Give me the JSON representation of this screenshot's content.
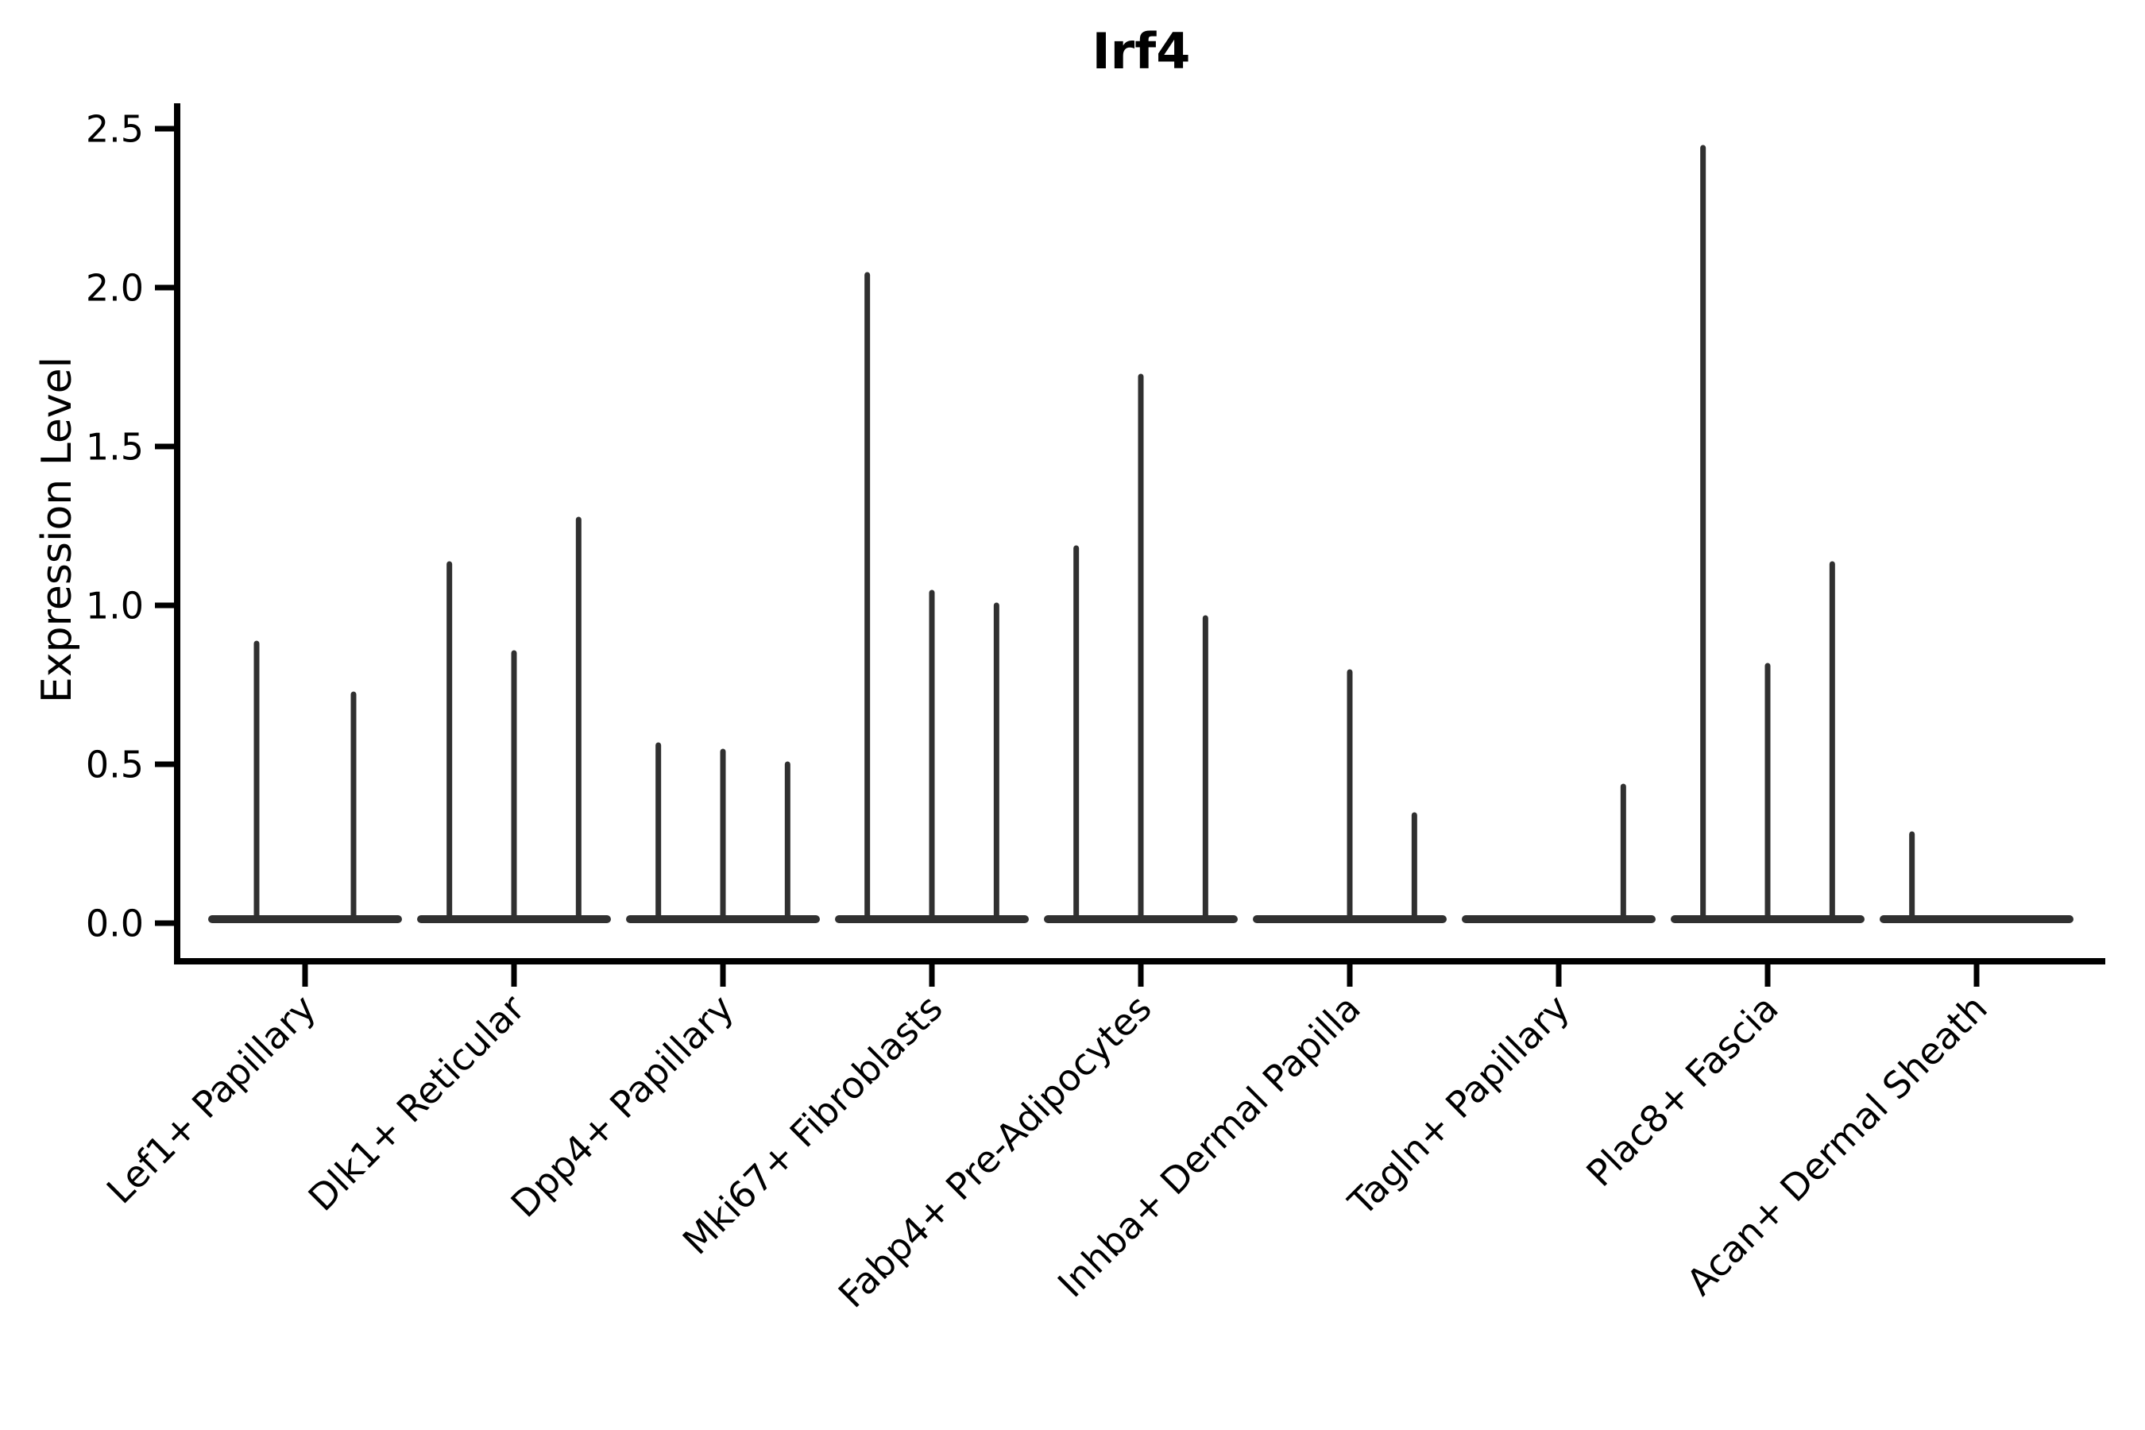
{
  "chart_data": {
    "type": "violin",
    "title": "Irf4",
    "xlabel": "",
    "ylabel": "Expression Level",
    "ylim": [
      0,
      2.5
    ],
    "yticks": [
      0.0,
      0.5,
      1.0,
      1.5,
      2.0,
      2.5
    ],
    "ytick_labels": [
      "0.0",
      "0.5",
      "1.0",
      "1.5",
      "2.0",
      "2.5"
    ],
    "grid": false,
    "legend_position": "none",
    "note": "Stacked-violin style expression plot; violins are collapsed to a baseline at 0 with a thin spike up to the maximum expression value. Each category contains 2-3 violins; value 0 means a flat violin with no spike.",
    "categories": [
      "Lef1+ Papillary",
      "Dlk1+ Reticular",
      "Dpp4+ Papillary",
      "Mki67+ Fibroblasts",
      "Fabp4+ Pre-Adipocytes",
      "Inhba+ Dermal Papilla",
      "Tagln+ Papillary",
      "Plac8+ Fascia",
      "Acan+ Dermal Sheath"
    ],
    "violins": [
      {
        "category": "Lef1+ Papillary",
        "max_values": [
          0.88,
          0.72
        ]
      },
      {
        "category": "Dlk1+ Reticular",
        "max_values": [
          1.13,
          0.85,
          1.27
        ]
      },
      {
        "category": "Dpp4+ Papillary",
        "max_values": [
          0.56,
          0.54,
          0.5
        ]
      },
      {
        "category": "Mki67+ Fibroblasts",
        "max_values": [
          2.04,
          1.04,
          1.0
        ]
      },
      {
        "category": "Fabp4+ Pre-Adipocytes",
        "max_values": [
          1.18,
          1.72,
          0.96
        ]
      },
      {
        "category": "Inhba+ Dermal Papilla",
        "max_values": [
          0.0,
          0.79,
          0.34
        ]
      },
      {
        "category": "Tagln+ Papillary",
        "max_values": [
          0.0,
          0.0,
          0.43
        ]
      },
      {
        "category": "Plac8+ Fascia",
        "max_values": [
          2.44,
          0.81,
          1.13
        ]
      },
      {
        "category": "Acan+ Dermal Sheath",
        "max_values": [
          0.28,
          0.0,
          0.0
        ]
      }
    ],
    "colors": {
      "violin_line": "#303030",
      "spine": "#000000",
      "text": "#000000",
      "background": "#ffffff"
    }
  }
}
